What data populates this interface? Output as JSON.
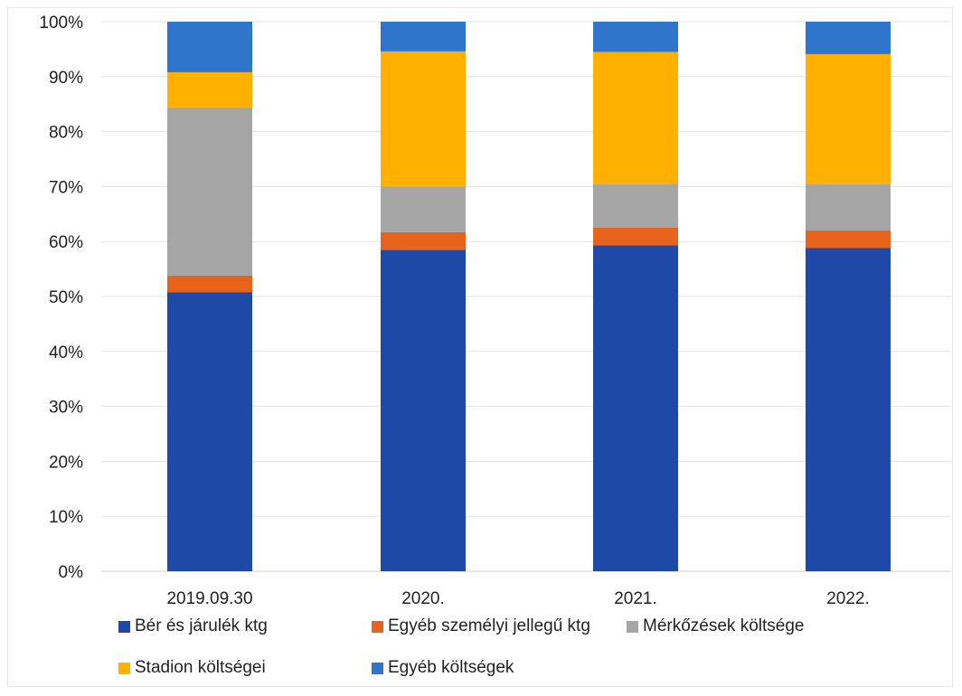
{
  "chart_data": {
    "type": "bar",
    "stacked": true,
    "normalized": true,
    "categories": [
      "2019.09.30",
      "2020.",
      "2021.",
      "2022."
    ],
    "series": [
      {
        "name": "Bér és járulék ktg",
        "color": "#1f49a6",
        "values": [
          50.8,
          58.5,
          59.3,
          58.8
        ]
      },
      {
        "name": "Egyéb személyi jellegű ktg",
        "color": "#e8641c",
        "values": [
          3.0,
          3.2,
          3.2,
          3.2
        ]
      },
      {
        "name": "Mérkőzések költsége",
        "color": "#a5a5a5",
        "values": [
          30.6,
          8.3,
          8.0,
          8.5
        ]
      },
      {
        "name": "Stadion költségei",
        "color": "#ffb000",
        "values": [
          6.4,
          24.6,
          24.0,
          23.6
        ]
      },
      {
        "name": "Egyéb költségek",
        "color": "#2e75cb",
        "values": [
          9.2,
          5.4,
          5.5,
          5.9
        ]
      }
    ],
    "yticks": [
      "0%",
      "10%",
      "20%",
      "30%",
      "40%",
      "50%",
      "60%",
      "70%",
      "80%",
      "90%",
      "100%"
    ],
    "ylim": [
      0,
      100
    ],
    "grid": true,
    "legend_position": "bottom",
    "title": "",
    "xlabel": "",
    "ylabel": ""
  }
}
